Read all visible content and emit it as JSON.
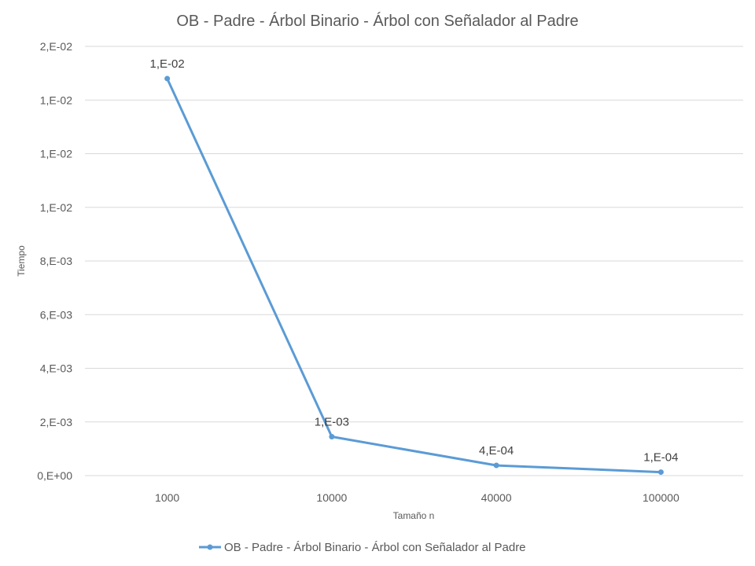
{
  "chart_data": {
    "type": "line",
    "title": "OB - Padre - Árbol Binario - Árbol con Señalador al Padre",
    "xlabel": "Tamaño n",
    "ylabel": "Tiempo",
    "categories": [
      "1000",
      "10000",
      "40000",
      "100000"
    ],
    "series": [
      {
        "name": "OB - Padre - Árbol Binario - Árbol con Señalador al Padre",
        "values": [
          0.0148,
          0.00145,
          0.00038,
          0.00013
        ],
        "data_labels": [
          "1,E-02",
          "1,E-03",
          "4,E-04",
          "1,E-04"
        ],
        "color": "#5b9bd5"
      }
    ],
    "y_ticks": [
      0,
      0.002,
      0.004,
      0.006,
      0.008,
      0.01,
      0.012,
      0.014,
      0.016
    ],
    "y_tick_labels": [
      "0,E+00",
      "2,E-03",
      "4,E-03",
      "6,E-03",
      "8,E-03",
      "1,E-02",
      "1,E-02",
      "1,E-02",
      "2,E-02"
    ],
    "ylim": [
      0,
      0.016
    ],
    "grid": true,
    "legend_position": "bottom"
  }
}
